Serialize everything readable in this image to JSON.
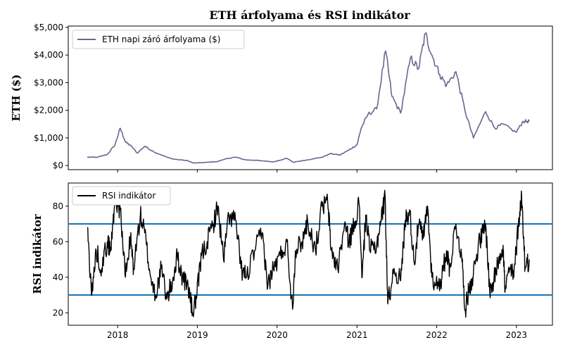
{
  "chart_data": {
    "title": "ETH árfolyama és RSI indikátor",
    "x_ticks": [
      "2018",
      "2019",
      "2020",
      "2021",
      "2022",
      "2023"
    ],
    "price_panel": {
      "type": "line",
      "ylabel": "ETH ($)",
      "ylim": [
        -150,
        5050
      ],
      "y_ticks": [
        {
          "value": 0,
          "label": "$0"
        },
        {
          "value": 1000,
          "label": "$1,000"
        },
        {
          "value": 2000,
          "label": "$2,000"
        },
        {
          "value": 3000,
          "label": "$3,000"
        },
        {
          "value": 4000,
          "label": "$4,000"
        },
        {
          "value": 5000,
          "label": "$5,000"
        }
      ],
      "legend": "ETH napi záró árfolyama ($)",
      "legend_position": "top-left",
      "color": "#6b6591",
      "series": {
        "name": "ETH napi záró árfolyama ($)",
        "x": [
          "2017-08-15",
          "2017-10-01",
          "2017-11-15",
          "2017-12-20",
          "2018-01-13",
          "2018-02-06",
          "2018-03-05",
          "2018-04-01",
          "2018-05-05",
          "2018-06-15",
          "2018-08-15",
          "2018-09-15",
          "2018-11-15",
          "2018-12-15",
          "2019-02-01",
          "2019-04-01",
          "2019-05-15",
          "2019-06-25",
          "2019-08-15",
          "2019-10-15",
          "2019-12-15",
          "2020-02-15",
          "2020-03-15",
          "2020-05-15",
          "2020-07-25",
          "2020-09-01",
          "2020-10-15",
          "2020-11-25",
          "2021-01-01",
          "2021-01-20",
          "2021-02-20",
          "2021-04-01",
          "2021-05-12",
          "2021-06-10",
          "2021-07-20",
          "2021-09-03",
          "2021-10-10",
          "2021-11-10",
          "2021-12-10",
          "2022-01-15",
          "2022-02-15",
          "2022-03-30",
          "2022-05-10",
          "2022-06-18",
          "2022-08-13",
          "2022-09-25",
          "2022-11-01",
          "2022-12-30",
          "2023-02-01",
          "2023-03-01"
        ],
        "y": [
          300,
          300,
          400,
          750,
          1350,
          850,
          700,
          450,
          700,
          500,
          300,
          230,
          180,
          90,
          110,
          140,
          250,
          300,
          200,
          180,
          130,
          260,
          120,
          200,
          300,
          430,
          380,
          560,
          750,
          1350,
          1850,
          2050,
          4150,
          2500,
          1900,
          3900,
          3500,
          4780,
          4000,
          3300,
          2900,
          3400,
          2000,
          1000,
          1950,
          1350,
          1500,
          1200,
          1600,
          1600
        ]
      }
    },
    "rsi_panel": {
      "type": "line",
      "ylabel": "RSI indikátor",
      "ylim": [
        13,
        93
      ],
      "y_ticks": [
        {
          "value": 20,
          "label": "20"
        },
        {
          "value": 40,
          "label": "40"
        },
        {
          "value": 60,
          "label": "60"
        },
        {
          "value": 80,
          "label": "80"
        }
      ],
      "legend": "RSI indikátor",
      "legend_position": "top-left",
      "color": "#000000",
      "thresholds": [
        70,
        30
      ],
      "threshold_color": "#1f77b4",
      "series": {
        "name": "RSI indikátor",
        "x": [
          "2017-08-15",
          "2017-09-05",
          "2017-09-25",
          "2017-10-20",
          "2017-11-15",
          "2017-12-01",
          "2017-12-20",
          "2018-01-13",
          "2018-02-06",
          "2018-03-01",
          "2018-03-15",
          "2018-04-15",
          "2018-05-05",
          "2018-06-01",
          "2018-06-25",
          "2018-07-20",
          "2018-08-15",
          "2018-09-10",
          "2018-10-01",
          "2018-10-25",
          "2018-11-20",
          "2018-12-10",
          "2018-12-30",
          "2019-01-20",
          "2019-02-15",
          "2019-03-15",
          "2019-04-05",
          "2019-05-01",
          "2019-05-25",
          "2019-06-25",
          "2019-07-20",
          "2019-08-15",
          "2019-09-20",
          "2019-10-25",
          "2019-11-20",
          "2019-12-15",
          "2020-01-15",
          "2020-02-15",
          "2020-03-12",
          "2020-03-25",
          "2020-04-25",
          "2020-05-20",
          "2020-06-25",
          "2020-07-25",
          "2020-08-20",
          "2020-09-05",
          "2020-10-05",
          "2020-11-05",
          "2020-11-25",
          "2020-12-20",
          "2021-01-10",
          "2021-01-25",
          "2021-02-10",
          "2021-03-01",
          "2021-04-01",
          "2021-04-20",
          "2021-05-10",
          "2021-05-22",
          "2021-06-20",
          "2021-07-20",
          "2021-08-10",
          "2021-08-30",
          "2021-09-20",
          "2021-10-10",
          "2021-11-01",
          "2021-11-20",
          "2021-12-10",
          "2022-01-10",
          "2022-01-25",
          "2022-02-15",
          "2022-03-01",
          "2022-03-30",
          "2022-04-25",
          "2022-05-12",
          "2022-06-01",
          "2022-06-18",
          "2022-07-10",
          "2022-08-01",
          "2022-08-13",
          "2022-09-01",
          "2022-09-20",
          "2022-10-15",
          "2022-11-01",
          "2022-11-10",
          "2022-12-01",
          "2022-12-20",
          "2023-01-10",
          "2023-01-25",
          "2023-02-10",
          "2023-03-01"
        ],
        "y": [
          68,
          30,
          55,
          45,
          60,
          55,
          85,
          78,
          40,
          62,
          45,
          75,
          65,
          40,
          30,
          45,
          28,
          38,
          52,
          40,
          35,
          20,
          30,
          52,
          60,
          70,
          80,
          50,
          75,
          72,
          45,
          40,
          55,
          65,
          35,
          45,
          52,
          60,
          22,
          55,
          60,
          72,
          55,
          80,
          82,
          55,
          45,
          70,
          60,
          70,
          82,
          40,
          75,
          55,
          58,
          72,
          85,
          25,
          45,
          38,
          72,
          78,
          48,
          70,
          62,
          80,
          40,
          35,
          40,
          55,
          45,
          70,
          52,
          22,
          35,
          42,
          58,
          65,
          70,
          32,
          38,
          52,
          58,
          32,
          45,
          40,
          70,
          86,
          45,
          50
        ]
      }
    }
  }
}
